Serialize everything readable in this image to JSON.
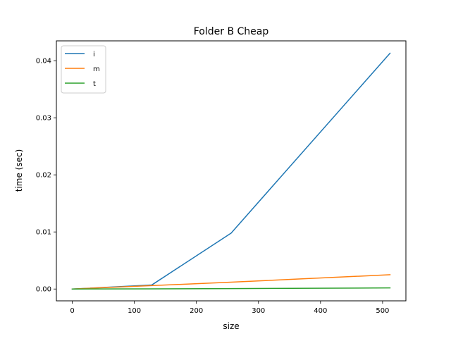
{
  "chart_data": {
    "type": "line",
    "title": "Folder B Cheap",
    "xlabel": "size",
    "ylabel": "time (sec)",
    "xlim": [
      -25.6,
      537.6
    ],
    "ylim": [
      -0.00207,
      0.04347
    ],
    "xticks": [
      0,
      100,
      200,
      300,
      400,
      500
    ],
    "xtick_labels": [
      "0",
      "100",
      "200",
      "300",
      "400",
      "500"
    ],
    "yticks": [
      0.0,
      0.01,
      0.02,
      0.03,
      0.04
    ],
    "ytick_labels": [
      "0.00",
      "0.01",
      "0.02",
      "0.03",
      "0.04"
    ],
    "grid": false,
    "legend_position": "top-left",
    "series": [
      {
        "name": "i",
        "color": "#1f77b4",
        "x": [
          0,
          128,
          256,
          512
        ],
        "y": [
          0.0,
          0.0007,
          0.0098,
          0.0413
        ]
      },
      {
        "name": "m",
        "color": "#ff7f0e",
        "x": [
          0,
          128,
          256,
          512
        ],
        "y": [
          0.0,
          0.0006,
          0.0012,
          0.0025
        ]
      },
      {
        "name": "t",
        "color": "#2ca02c",
        "x": [
          0,
          128,
          256,
          512
        ],
        "y": [
          0.0,
          3e-05,
          7e-05,
          0.0002
        ]
      }
    ]
  }
}
